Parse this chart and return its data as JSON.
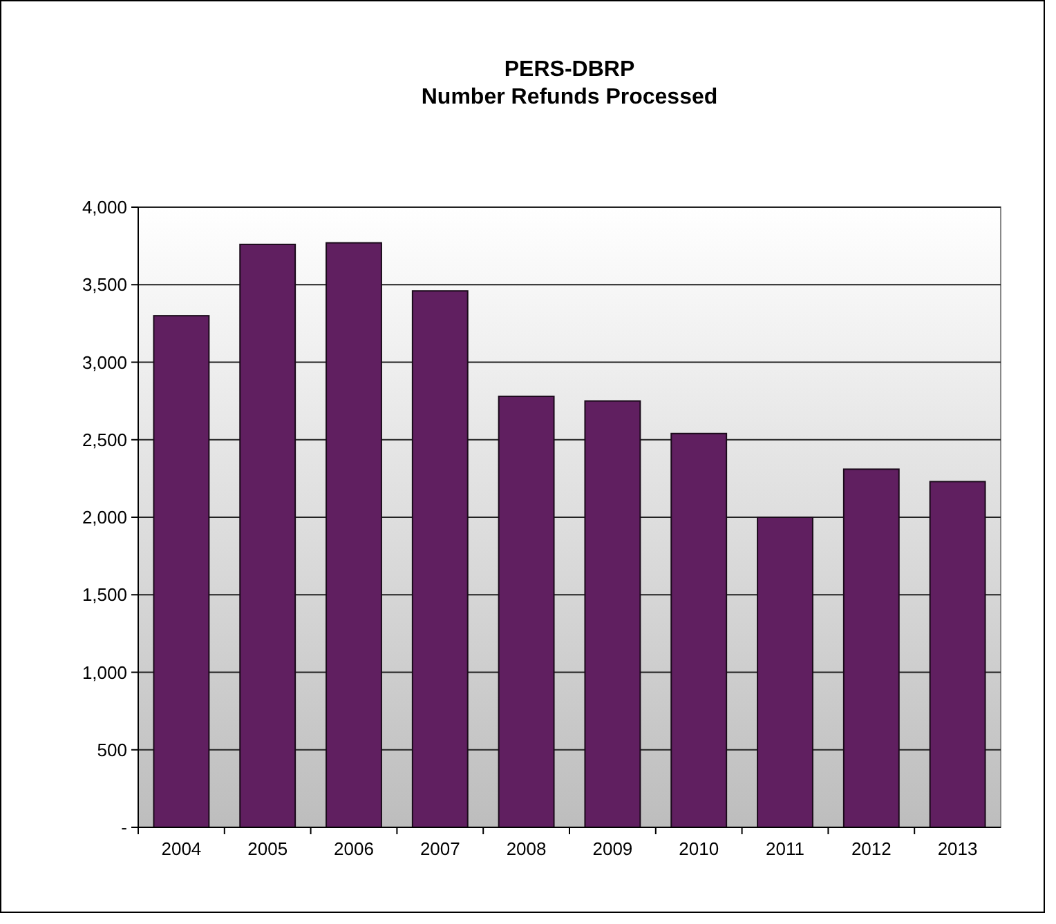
{
  "chart_data": {
    "type": "bar",
    "title": "PERS-DBRP\nNumber Refunds Processed",
    "categories": [
      "2004",
      "2005",
      "2006",
      "2007",
      "2008",
      "2009",
      "2010",
      "2011",
      "2012",
      "2013"
    ],
    "values": [
      3300,
      3760,
      3770,
      3460,
      2780,
      2750,
      2540,
      2000,
      2310,
      2230
    ],
    "color": "#601f60",
    "ylim": [
      0,
      4000
    ],
    "yticks": [
      {
        "value": 0,
        "label": "-"
      },
      {
        "value": 500,
        "label": "500"
      },
      {
        "value": 1000,
        "label": "1,000"
      },
      {
        "value": 1500,
        "label": "1,500"
      },
      {
        "value": 2000,
        "label": "2,000"
      },
      {
        "value": 2500,
        "label": "2,500"
      },
      {
        "value": 3000,
        "label": "3,000"
      },
      {
        "value": 3500,
        "label": "3,500"
      },
      {
        "value": 4000,
        "label": "4,000"
      }
    ],
    "grid": true
  }
}
